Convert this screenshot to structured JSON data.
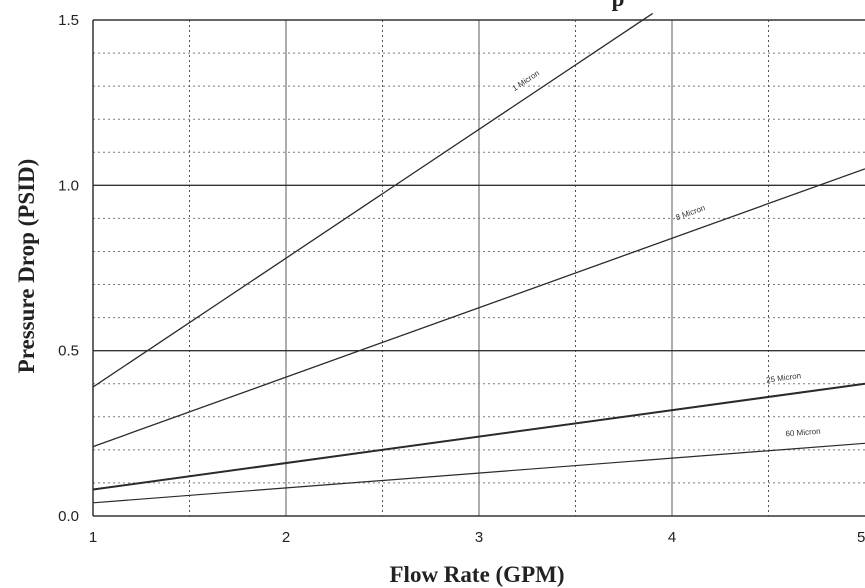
{
  "chart_data": {
    "type": "line",
    "title_fragment": "p",
    "xlabel": "Flow Rate (GPM)",
    "ylabel": "Pressure Drop (PSID)",
    "xlim": [
      1,
      5
    ],
    "ylim": [
      0,
      1.5
    ],
    "x_ticks": [
      "1",
      "2",
      "3",
      "4",
      "5"
    ],
    "y_ticks": [
      "0.0",
      "0.5",
      "1.0",
      "1.5"
    ],
    "grid": true,
    "line_color": "#2a2a2a",
    "series": [
      {
        "name": "1 Micron",
        "x": [
          1,
          3.9
        ],
        "y": [
          0.39,
          1.52
        ],
        "label_at": [
          3.25,
          1.31
        ]
      },
      {
        "name": "8 Micron",
        "x": [
          1,
          5
        ],
        "y": [
          0.21,
          1.05
        ],
        "label_at": [
          4.1,
          0.91
        ]
      },
      {
        "name": "25 Micron",
        "x": [
          1,
          5
        ],
        "y": [
          0.08,
          0.4
        ],
        "label_at": [
          4.58,
          0.41
        ]
      },
      {
        "name": "60 Micron",
        "x": [
          1,
          5
        ],
        "y": [
          0.04,
          0.22
        ],
        "label_at": [
          4.68,
          0.245
        ]
      }
    ]
  }
}
